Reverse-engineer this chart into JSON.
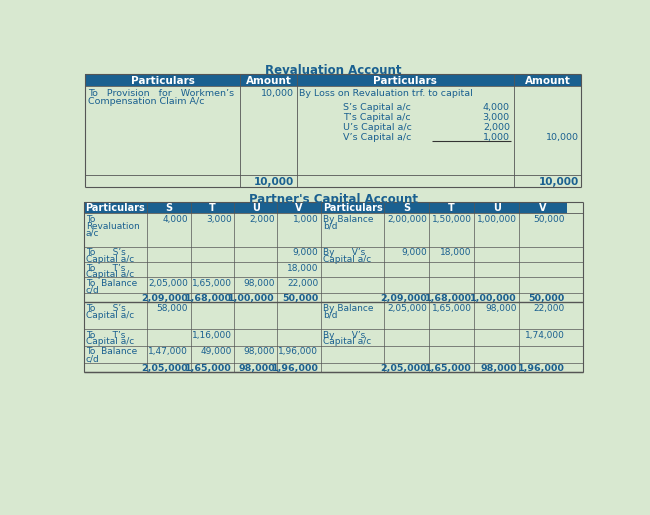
{
  "bg_color": "#d8e8d0",
  "header_color": "#1a6090",
  "header_text_color": "#ffffff",
  "cell_text_color": "#1a6090",
  "title_color": "#1a6090",
  "revaluation_title": "Revaluation Account",
  "partners_title": "Partner's Capital Account",
  "rev_headers": [
    "Particulars",
    "Amount",
    "Particulars",
    "Amount"
  ],
  "cap_headers": [
    "Particulars",
    "S",
    "T",
    "U",
    "V",
    "Particulars",
    "S",
    "T",
    "U",
    "V"
  ],
  "cap_rows": [
    [
      "To\nRevaluation\na/c",
      "4,000",
      "3,000",
      "2,000",
      "1,000",
      "By Balance\nb/d",
      "2,00,000",
      "1,50,000",
      "1,00,000",
      "50,000"
    ],
    [
      "To      S’s\nCapital a/c",
      "",
      "",
      "",
      "9,000",
      "By      V’s\nCapital a/c",
      "9,000",
      "18,000",
      "",
      ""
    ],
    [
      "To      T’s\nCapital a/c",
      "",
      "",
      "",
      "18,000",
      "",
      "",
      "",
      "",
      ""
    ],
    [
      "To  Balance\nc/d",
      "2,05,000",
      "1,65,000",
      "98,000",
      "22,000",
      "",
      "",
      "",
      "",
      ""
    ],
    [
      "",
      "2,09,000",
      "1,68,000",
      "1,00,000",
      "50,000",
      "",
      "2,09,000",
      "1,68,000",
      "1,00,000",
      "50,000"
    ],
    [
      "To      S’s\nCapital a/c",
      "58,000",
      "",
      "",
      "",
      "By Balance\nb/d",
      "2,05,000",
      "1,65,000",
      "98,000",
      "22,000"
    ],
    [
      "To      T’s\nCapital a/c",
      "",
      "1,16,000",
      "",
      "",
      "By      V’s\nCapital a/c",
      "",
      "",
      "",
      "1,74,000"
    ],
    [
      "To  Balance\nc/d",
      "1,47,000",
      "49,000",
      "98,000",
      "1,96,000",
      "",
      "",
      "",
      "",
      ""
    ],
    [
      "",
      "2,05,000",
      "1,65,000",
      "98,000",
      "1,96,000",
      "",
      "2,05,000",
      "1,65,000",
      "98,000",
      "1,96,000"
    ]
  ]
}
